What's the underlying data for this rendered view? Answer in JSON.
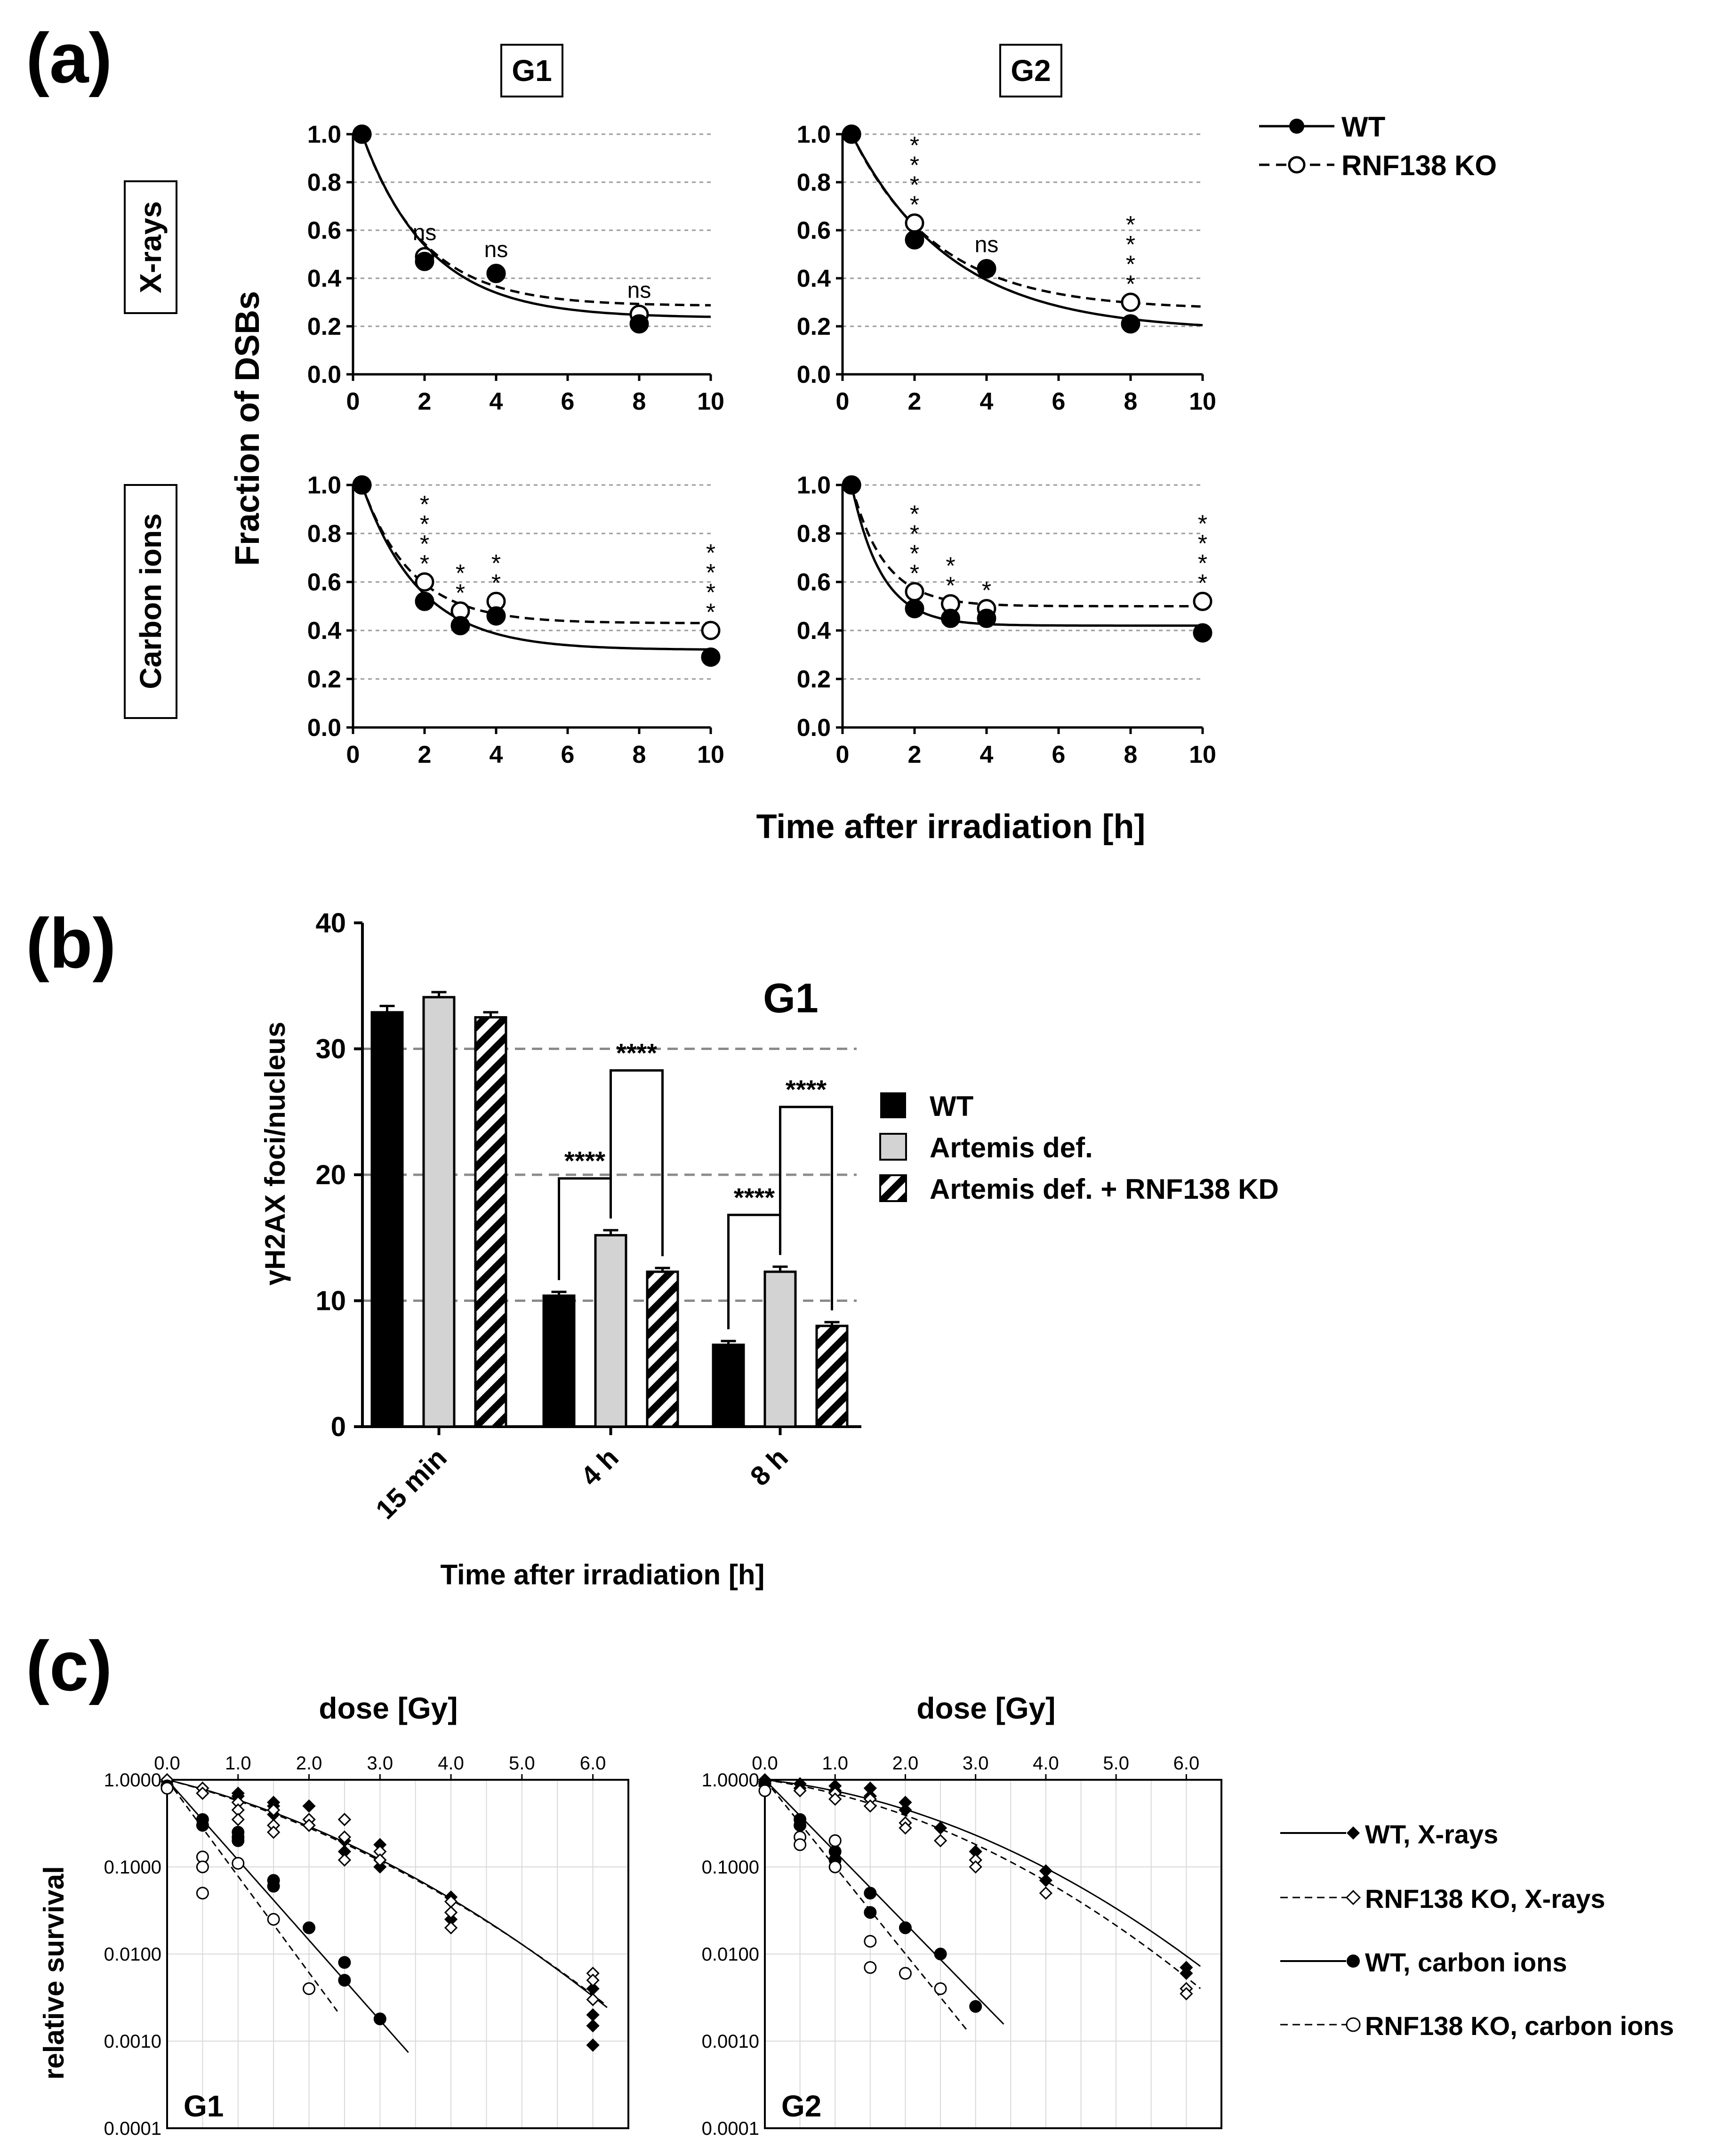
{
  "panel_labels": {
    "a": "(a)",
    "b": "(b)",
    "c": "(c)"
  },
  "panel_a": {
    "col_labels": [
      "G1",
      "G2"
    ],
    "row_labels": [
      "X-rays",
      "Carbon ions"
    ],
    "ylabel": "Fraction of DSBs",
    "xlabel": "Time after irradiation [h]",
    "x_ticks": [
      "0",
      "2",
      "4",
      "6",
      "8",
      "10"
    ],
    "y_ticks": [
      "0.0",
      "0.2",
      "0.4",
      "0.6",
      "0.8",
      "1.0"
    ],
    "legend": [
      "WT",
      "RNF138 KO"
    ],
    "colors": {
      "wt": "#000000",
      "ko": "#000000",
      "grid": "#9a9a9a"
    }
  },
  "panel_b": {
    "title": "G1",
    "ylabel": "γH2AX foci/nucleus",
    "xlabel": "Time after irradiation [h]",
    "y_ticks": [
      "0",
      "10",
      "20",
      "30",
      "40"
    ],
    "categories": [
      "15 min",
      "4 h",
      "8 h"
    ],
    "legend": [
      "WT",
      "Artemis def.",
      "Artemis def. + RNF138 KD"
    ],
    "colors": {
      "wt": "#000000",
      "artemis": "#d3d3d3",
      "kd_hatch": "#000000"
    }
  },
  "panel_c": {
    "xlabel": "dose [Gy]",
    "ylabel": "relative survival",
    "panel_tags": [
      "G1",
      "G2"
    ],
    "x_ticks": [
      "0.0",
      "1.0",
      "2.0",
      "3.0",
      "4.0",
      "5.0",
      "6.0"
    ],
    "y_ticks": [
      "1.0000",
      "0.1000",
      "0.0100",
      "0.0010",
      "0.0001"
    ],
    "legend": [
      "WT, X-rays",
      "RNF138 KO, X-rays",
      "WT, carbon ions",
      "RNF138 KO, carbon ions"
    ]
  },
  "chart_data": [
    {
      "type": "scatter",
      "panel": "a",
      "row": "X-rays",
      "col": "G1",
      "xlim": [
        0,
        10
      ],
      "ylim": [
        0,
        1
      ],
      "series": [
        {
          "name": "WT",
          "x": [
            0.25,
            2,
            4,
            8
          ],
          "y": [
            1.0,
            0.47,
            0.42,
            0.21
          ],
          "fit": {
            "plateau": 0.235,
            "k": 0.53
          }
        },
        {
          "name": "RNF138 KO",
          "x": [
            0.25,
            2,
            4,
            8
          ],
          "y": [
            1.0,
            0.49,
            0.42,
            0.25
          ],
          "fit": {
            "plateau": 0.285,
            "k": 0.58
          }
        }
      ],
      "annotations": [
        {
          "x": 2,
          "text": "ns"
        },
        {
          "x": 4,
          "text": "ns"
        },
        {
          "x": 8,
          "text": "ns"
        }
      ]
    },
    {
      "type": "scatter",
      "panel": "a",
      "row": "X-rays",
      "col": "G2",
      "xlim": [
        0,
        10
      ],
      "ylim": [
        0,
        1
      ],
      "series": [
        {
          "name": "WT",
          "x": [
            0.25,
            2,
            4,
            8
          ],
          "y": [
            1.0,
            0.56,
            0.44,
            0.21
          ],
          "fit": {
            "plateau": 0.18,
            "k": 0.36
          }
        },
        {
          "name": "RNF138 KO",
          "x": [
            0.25,
            2,
            4,
            8
          ],
          "y": [
            1.0,
            0.63,
            0.44,
            0.3
          ],
          "fit": {
            "plateau": 0.27,
            "k": 0.42
          }
        }
      ],
      "annotations": [
        {
          "x": 2,
          "text": "****"
        },
        {
          "x": 4,
          "text": "ns"
        },
        {
          "x": 8,
          "text": "****"
        }
      ]
    },
    {
      "type": "scatter",
      "panel": "a",
      "row": "Carbon ions",
      "col": "G1",
      "xlim": [
        0,
        10
      ],
      "ylim": [
        0,
        1
      ],
      "series": [
        {
          "name": "WT",
          "x": [
            0.25,
            2,
            3,
            4,
            10
          ],
          "y": [
            1.0,
            0.52,
            0.42,
            0.46,
            0.29
          ],
          "fit": {
            "plateau": 0.32,
            "k": 0.62
          }
        },
        {
          "name": "RNF138 KO",
          "x": [
            0.25,
            2,
            3,
            4,
            10
          ],
          "y": [
            1.0,
            0.6,
            0.48,
            0.52,
            0.4
          ],
          "fit": {
            "plateau": 0.43,
            "k": 0.72
          }
        }
      ],
      "annotations": [
        {
          "x": 2,
          "text": "****"
        },
        {
          "x": 3,
          "text": "**"
        },
        {
          "x": 4,
          "text": "**"
        },
        {
          "x": 10,
          "text": "****"
        }
      ]
    },
    {
      "type": "scatter",
      "panel": "a",
      "row": "Carbon ions",
      "col": "G2",
      "xlim": [
        0,
        10
      ],
      "ylim": [
        0,
        1
      ],
      "series": [
        {
          "name": "WT",
          "x": [
            0.25,
            2,
            3,
            4,
            10
          ],
          "y": [
            1.0,
            0.49,
            0.45,
            0.45,
            0.39
          ],
          "fit": {
            "plateau": 0.42,
            "k": 1.2
          }
        },
        {
          "name": "RNF138 KO",
          "x": [
            0.25,
            2,
            3,
            4,
            10
          ],
          "y": [
            1.0,
            0.56,
            0.51,
            0.49,
            0.52
          ],
          "fit": {
            "plateau": 0.5,
            "k": 1.1
          }
        }
      ],
      "annotations": [
        {
          "x": 2,
          "text": "****"
        },
        {
          "x": 3,
          "text": "**"
        },
        {
          "x": 4,
          "text": "*"
        },
        {
          "x": 10,
          "text": "****"
        }
      ]
    },
    {
      "type": "bar",
      "panel": "b",
      "title": "G1",
      "categories": [
        "15 min",
        "4 h",
        "8 h"
      ],
      "ylim": [
        0,
        40
      ],
      "series": [
        {
          "name": "WT",
          "values": [
            32.9,
            10.4,
            6.5
          ],
          "errors": [
            0.5,
            0.3,
            0.3
          ]
        },
        {
          "name": "Artemis def.",
          "values": [
            34.1,
            15.2,
            12.3
          ],
          "errors": [
            0.4,
            0.4,
            0.4
          ]
        },
        {
          "name": "Artemis def. + RNF138 KD",
          "values": [
            32.5,
            12.3,
            8.0
          ],
          "errors": [
            0.4,
            0.3,
            0.3
          ]
        }
      ],
      "significance": [
        {
          "category": "4 h",
          "pair": [
            0,
            1
          ],
          "text": "****"
        },
        {
          "category": "4 h",
          "pair": [
            1,
            2
          ],
          "text": "****"
        },
        {
          "category": "8 h",
          "pair": [
            0,
            1
          ],
          "text": "****"
        },
        {
          "category": "8 h",
          "pair": [
            1,
            2
          ],
          "text": "****"
        }
      ]
    },
    {
      "type": "scatter",
      "panel": "c",
      "tag": "G1",
      "yscale": "log",
      "xlim": [
        0,
        6.5
      ],
      "ylim": [
        0.0001,
        1
      ],
      "series": [
        {
          "name": "WT, X-rays",
          "x": [
            0,
            0,
            0,
            0.5,
            0.5,
            1,
            1,
            1,
            1.5,
            1.5,
            1.5,
            2,
            2,
            2,
            2.5,
            2.5,
            2.5,
            3,
            3,
            3,
            4,
            4,
            4,
            6,
            6,
            6,
            6
          ],
          "y": [
            1.0,
            0.95,
            0.85,
            0.8,
            0.7,
            0.7,
            0.65,
            0.55,
            0.55,
            0.5,
            0.4,
            0.5,
            0.35,
            0.3,
            0.35,
            0.2,
            0.15,
            0.18,
            0.12,
            0.1,
            0.045,
            0.03,
            0.025,
            0.004,
            0.002,
            0.0015,
            0.0009
          ],
          "fit": {
            "alpha": 0.45,
            "beta": 0.084
          }
        },
        {
          "name": "RNF138 KO, X-rays",
          "x": [
            0,
            0,
            0.5,
            0.5,
            1,
            1,
            1,
            1.5,
            1.5,
            1.5,
            2,
            2,
            2.5,
            2.5,
            2.5,
            3,
            3,
            4,
            4,
            4,
            6,
            6,
            6
          ],
          "y": [
            1.0,
            0.85,
            0.8,
            0.7,
            0.55,
            0.45,
            0.35,
            0.45,
            0.3,
            0.25,
            0.35,
            0.3,
            0.35,
            0.22,
            0.12,
            0.15,
            0.12,
            0.04,
            0.03,
            0.02,
            0.006,
            0.005,
            0.003
          ],
          "fit": {
            "alpha": 0.48,
            "beta": 0.078
          }
        },
        {
          "name": "WT, carbon ions",
          "x": [
            0,
            0.5,
            0.5,
            1,
            1,
            1,
            1.5,
            1.5,
            2,
            2.5,
            2.5,
            3
          ],
          "y": [
            0.85,
            0.35,
            0.3,
            0.25,
            0.22,
            0.2,
            0.07,
            0.06,
            0.02,
            0.008,
            0.005,
            0.0018
          ],
          "fit": {
            "alpha": 2.12,
            "beta": 0.0
          }
        },
        {
          "name": "RNF138 KO, carbon ions",
          "x": [
            0,
            0.5,
            0.5,
            0.5,
            1,
            1.5,
            2
          ],
          "y": [
            0.8,
            0.13,
            0.1,
            0.05,
            0.11,
            0.025,
            0.004
          ],
          "fit": {
            "alpha": 2.55,
            "beta": 0.0
          }
        }
      ]
    },
    {
      "type": "scatter",
      "panel": "c",
      "tag": "G2",
      "yscale": "log",
      "xlim": [
        0,
        6.5
      ],
      "ylim": [
        0.0001,
        1
      ],
      "series": [
        {
          "name": "WT, X-rays",
          "x": [
            0,
            0,
            0.5,
            0.5,
            1,
            1,
            1.5,
            1.5,
            2,
            2,
            2.5,
            3,
            3,
            4,
            4,
            6,
            6
          ],
          "y": [
            1.0,
            0.9,
            0.9,
            0.8,
            0.85,
            0.75,
            0.8,
            0.65,
            0.55,
            0.45,
            0.28,
            0.15,
            0.12,
            0.09,
            0.07,
            0.007,
            0.006
          ],
          "fit": {
            "alpha": 0.2,
            "beta": 0.096
          }
        },
        {
          "name": "RNF138 KO, X-rays",
          "x": [
            0,
            0,
            0.5,
            1,
            1,
            1.5,
            1.5,
            2,
            2,
            2.5,
            3,
            3,
            4,
            6,
            6
          ],
          "y": [
            0.95,
            0.85,
            0.75,
            0.7,
            0.6,
            0.6,
            0.5,
            0.32,
            0.28,
            0.2,
            0.12,
            0.1,
            0.05,
            0.004,
            0.0035
          ],
          "fit": {
            "alpha": 0.27,
            "beta": 0.1
          }
        },
        {
          "name": "WT, carbon ions",
          "x": [
            0,
            0.5,
            0.5,
            1,
            1,
            1,
            1.5,
            1.5,
            2,
            2.5,
            3
          ],
          "y": [
            0.9,
            0.35,
            0.3,
            0.15,
            0.12,
            0.1,
            0.05,
            0.03,
            0.02,
            0.01,
            0.0025
          ],
          "fit": {
            "alpha": 1.9,
            "beta": 0.0
          }
        },
        {
          "name": "RNF138 KO, carbon ions",
          "x": [
            0,
            0.5,
            0.5,
            1,
            1,
            1.5,
            1.5,
            2,
            2.5
          ],
          "y": [
            0.75,
            0.22,
            0.18,
            0.2,
            0.1,
            0.014,
            0.007,
            0.006,
            0.004
          ],
          "fit": {
            "alpha": 2.3,
            "beta": 0.0
          }
        }
      ]
    }
  ]
}
